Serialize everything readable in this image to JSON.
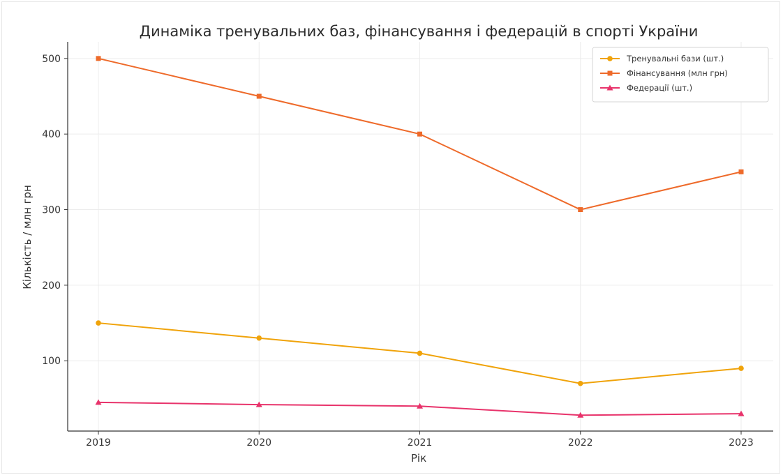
{
  "chart_data": {
    "type": "line",
    "title": "Динаміка тренувальних баз, фінансування і федерацій в спорті України",
    "xlabel": "Рік",
    "ylabel": "Кількість / млн грн",
    "categories": [
      "2019",
      "2020",
      "2021",
      "2022",
      "2023"
    ],
    "y_ticks": [
      "100",
      "200",
      "300",
      "400",
      "500"
    ],
    "ylim": [
      7,
      522
    ],
    "grid": true,
    "legend_position": "top-right",
    "series": [
      {
        "name": "Тренувальні бази (шт.)",
        "values": [
          150,
          130,
          110,
          70,
          90
        ],
        "color": "#f0a30a",
        "marker": "circle"
      },
      {
        "name": "Фінансування (млн грн)",
        "values": [
          500,
          450,
          400,
          300,
          350
        ],
        "color": "#ee6a2a",
        "marker": "square"
      },
      {
        "name": "Федерації (шт.)",
        "values": [
          45,
          42,
          40,
          28,
          30
        ],
        "color": "#e8336b",
        "marker": "triangle"
      }
    ]
  }
}
